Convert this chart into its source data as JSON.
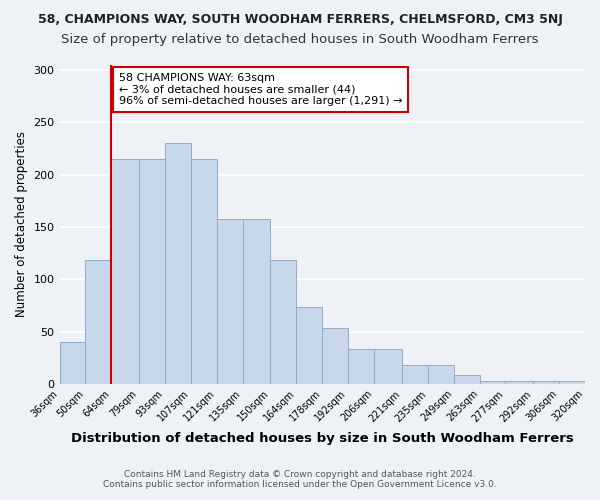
{
  "title1": "58, CHAMPIONS WAY, SOUTH WOODHAM FERRERS, CHELMSFORD, CM3 5NJ",
  "title2": "Size of property relative to detached houses in South Woodham Ferrers",
  "xlabel": "Distribution of detached houses by size in South Woodham Ferrers",
  "ylabel": "Number of detached properties",
  "footnote1": "Contains HM Land Registry data © Crown copyright and database right 2024.",
  "footnote2": "Contains public sector information licensed under the Open Government Licence v3.0.",
  "annotation_line1": "58 CHAMPIONS WAY: 63sqm",
  "annotation_line2": "← 3% of detached houses are smaller (44)",
  "annotation_line3": "96% of semi-detached houses are larger (1,291) →",
  "bin_edges": [
    36,
    50,
    64,
    79,
    93,
    107,
    121,
    135,
    150,
    164,
    178,
    192,
    206,
    221,
    235,
    249,
    263,
    277,
    292,
    306,
    320
  ],
  "bar_labels": [
    "36sqm",
    "50sqm",
    "64sqm",
    "79sqm",
    "93sqm",
    "107sqm",
    "121sqm",
    "135sqm",
    "150sqm",
    "164sqm",
    "178sqm",
    "192sqm",
    "206sqm",
    "221sqm",
    "235sqm",
    "249sqm",
    "263sqm",
    "277sqm",
    "292sqm",
    "306sqm",
    "320sqm"
  ],
  "bar_values": [
    40,
    118,
    215,
    215,
    230,
    215,
    158,
    158,
    118,
    73,
    53,
    33,
    33,
    18,
    18,
    8,
    3,
    3,
    3,
    3
  ],
  "bar_color": "#c8d8ea",
  "bar_edge_color": "#90aec8",
  "vline_x": 64,
  "vline_color": "#cc0000",
  "ylim": [
    0,
    305
  ],
  "annotation_box_color": "#ffffff",
  "annotation_box_edge": "#cc0000",
  "bg_color": "#eef2f7",
  "grid_color": "#ffffff",
  "title1_fontsize": 9.0,
  "title2_fontsize": 9.5,
  "xlabel_fontsize": 9.5,
  "ylabel_fontsize": 8.5,
  "tick_fontsize": 7.0,
  "annot_fontsize": 8.0,
  "footnote_fontsize": 6.5
}
